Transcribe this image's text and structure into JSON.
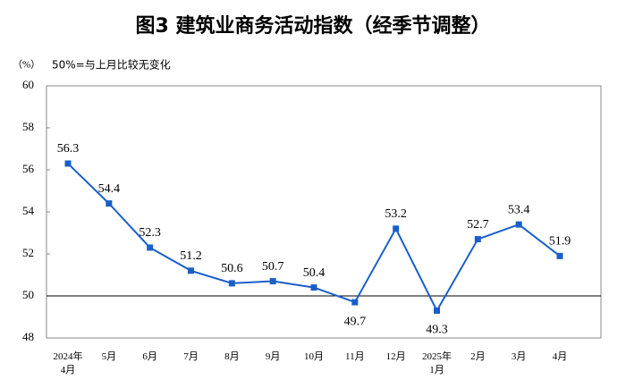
{
  "chart_data": {
    "type": "line",
    "title": "图3  建筑业商务活动指数（经季节调整）",
    "y_unit": "（%）",
    "annotation": "50%=与上月比较无变化",
    "categories": [
      "2024年\n4月",
      "5月",
      "6月",
      "7月",
      "8月",
      "9月",
      "10月",
      "11月",
      "12月",
      "2025年\n1月",
      "2月",
      "3月",
      "4月"
    ],
    "series": [
      {
        "name": "建筑业商务活动指数",
        "color": "#1a5fc8",
        "values": [
          56.3,
          54.4,
          52.3,
          51.2,
          50.6,
          50.7,
          50.4,
          49.7,
          53.2,
          49.3,
          52.7,
          53.4,
          51.9
        ]
      }
    ],
    "ylim": [
      48,
      60
    ],
    "yticks": [
      48,
      50,
      52,
      54,
      56,
      58,
      60
    ],
    "reference_line": 50
  }
}
